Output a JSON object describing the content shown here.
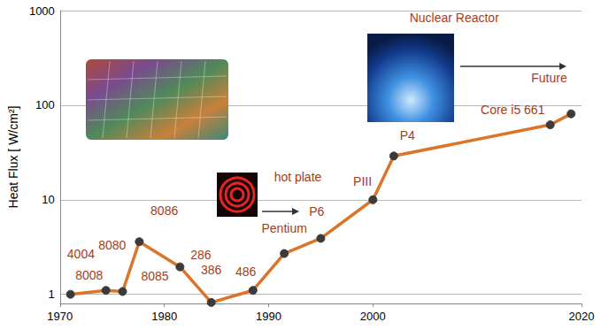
{
  "chart_data": {
    "type": "line",
    "ylabel": "Heat Flux [ W/cm²]",
    "x": [
      1971,
      1974.4,
      1976,
      1977.6,
      1981.5,
      1984.5,
      1988.5,
      1991.5,
      1995,
      2000,
      2002,
      2017,
      2019
    ],
    "values": [
      1,
      1.1,
      1.07,
      3.6,
      1.95,
      0.82,
      1.1,
      2.7,
      3.9,
      10,
      29,
      62,
      81
    ],
    "color": "#d9762c",
    "marker": "circle",
    "xlim": [
      1970,
      2020
    ],
    "xticks": [
      1970,
      1980,
      1990,
      2000,
      2020
    ],
    "ylim": [
      0.8,
      1000
    ],
    "yticks": [
      1,
      10,
      100,
      1000
    ],
    "log": "y",
    "grid": true,
    "annotations": [
      {
        "text": "4004",
        "x": 1972,
        "y": 2.7
      },
      {
        "text": "8008",
        "x": 1972.8,
        "y": 1.6
      },
      {
        "text": "8080",
        "x": 1975,
        "y": 3.3
      },
      {
        "text": "8085",
        "x": 1979.1,
        "y": 1.55
      },
      {
        "text": "8086",
        "x": 1980,
        "y": 7.7
      },
      {
        "text": "286",
        "x": 1983.5,
        "y": 2.6
      },
      {
        "text": "386",
        "x": 1984.5,
        "y": 1.8
      },
      {
        "text": "486",
        "x": 1987.8,
        "y": 1.75
      },
      {
        "text": "Pentium",
        "x": 1991.5,
        "y": 5.0
      },
      {
        "text": "P6",
        "x": 1994.6,
        "y": 7.5
      },
      {
        "text": "hot plate",
        "x": 1992.8,
        "y": 17.5
      },
      {
        "text": "PIII",
        "x": 1999,
        "y": 15.5
      },
      {
        "text": "P4",
        "x": 2003.3,
        "y": 48
      },
      {
        "text": "Core i5 661",
        "x": 2013.4,
        "y": 90
      },
      {
        "text": "Nuclear Reactor",
        "x": 2007.8,
        "y": 840
      },
      {
        "text": "Future",
        "x": 2016.9,
        "y": 195
      }
    ]
  }
}
